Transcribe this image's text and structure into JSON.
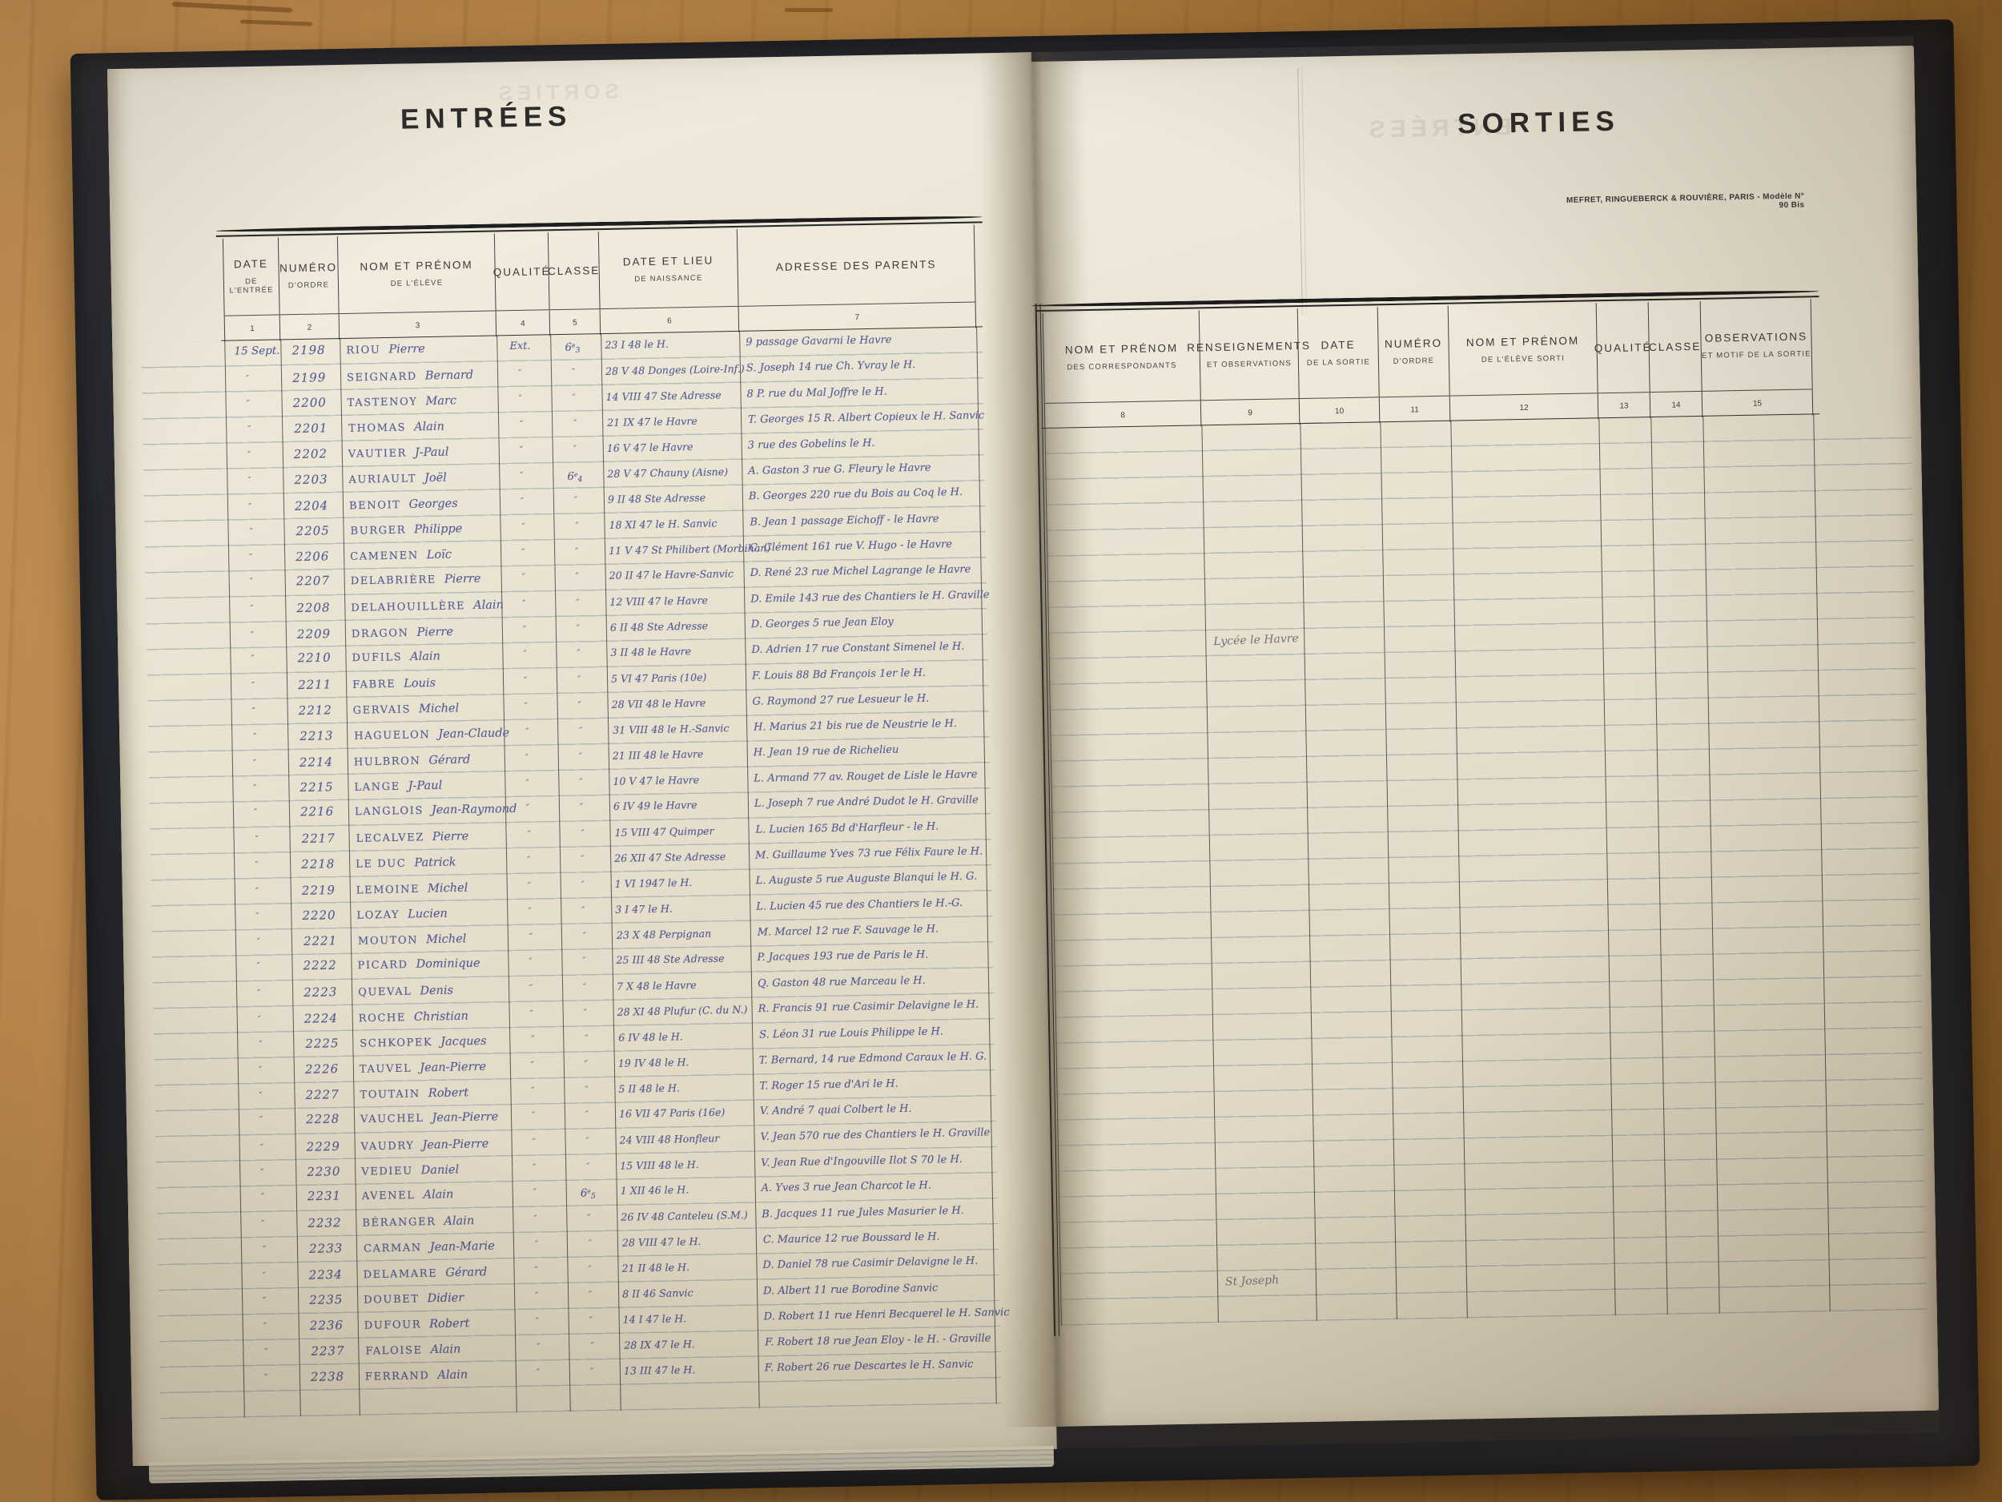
{
  "book": {
    "left_page": {
      "title": "ENTRÉES",
      "columns": [
        {
          "label": "DATE",
          "sublabel": "DE L'ENTRÉE",
          "num": "1"
        },
        {
          "label": "NUMÉRO",
          "sublabel": "D'ORDRE",
          "num": "2"
        },
        {
          "label": "NOM ET PRÉNOM",
          "sublabel": "DE L'ÉLÈVE",
          "num": "3"
        },
        {
          "label": "QUALITÉ",
          "sublabel": "",
          "num": "4"
        },
        {
          "label": "CLASSE",
          "sublabel": "",
          "num": "5"
        },
        {
          "label": "DATE ET LIEU",
          "sublabel": "DE NAISSANCE",
          "num": "6"
        },
        {
          "label": "ADRESSE DES PARENTS",
          "sublabel": "",
          "num": "7"
        }
      ],
      "rows": [
        {
          "date": "15 Sept.",
          "num": "2198",
          "last": "RIOU",
          "first": "Pierre",
          "qualite": "Ext.",
          "classe": "6e3",
          "birth": "23 I 48 le H.",
          "address": "9 passage Gavarni le Havre"
        },
        {
          "date": "″",
          "num": "2199",
          "last": "SEIGNARD",
          "first": "Bernard",
          "qualite": "″",
          "classe": "″",
          "birth": "28 V 48 Donges (Loire-Inf.)",
          "address": "S. Joseph 14 rue Ch. Yvray le H."
        },
        {
          "date": "″",
          "num": "2200",
          "last": "TASTENOY",
          "first": "Marc",
          "qualite": "″",
          "classe": "″",
          "birth": "14 VIII 47 Ste Adresse",
          "address": "8 P. rue du Mal Joffre le H."
        },
        {
          "date": "″",
          "num": "2201",
          "last": "THOMAS",
          "first": "Alain",
          "qualite": "″",
          "classe": "″",
          "birth": "21 IX 47 le Havre",
          "address": "T. Georges 15 R. Albert Copieux le H. Sanvic"
        },
        {
          "date": "″",
          "num": "2202",
          "last": "VAUTIER",
          "first": "J-Paul",
          "qualite": "″",
          "classe": "″",
          "birth": "16 V 47 le Havre",
          "address": "3 rue des Gobelins le H."
        },
        {
          "date": "″",
          "num": "2203",
          "last": "AURIAULT",
          "first": "Joël",
          "qualite": "″",
          "classe": "6e4",
          "birth": "28 V 47 Chauny (Aisne)",
          "address": "A. Gaston 3 rue G. Fleury le Havre"
        },
        {
          "date": "″",
          "num": "2204",
          "last": "BENOIT",
          "first": "Georges",
          "qualite": "″",
          "classe": "″",
          "birth": "9 II 48 Ste Adresse",
          "address": "B. Georges 220 rue du Bois au Coq le H."
        },
        {
          "date": "″",
          "num": "2205",
          "last": "BURGER",
          "first": "Philippe",
          "qualite": "″",
          "classe": "″",
          "birth": "18 XI 47 le H. Sanvic",
          "address": "B. Jean 1 passage Eichoff - le Havre"
        },
        {
          "date": "″",
          "num": "2206",
          "last": "CAMENEN",
          "first": "Loïc",
          "qualite": "″",
          "classe": "″",
          "birth": "11 V 47 St Philibert (Morbihan)",
          "address": "C. Clément 161 rue V. Hugo - le Havre"
        },
        {
          "date": "″",
          "num": "2207",
          "last": "DELABRIÈRE",
          "first": "Pierre",
          "qualite": "″",
          "classe": "″",
          "birth": "20 II 47 le Havre-Sanvic",
          "address": "D. René 23 rue Michel Lagrange le Havre"
        },
        {
          "date": "″",
          "num": "2208",
          "last": "DELAHOUILLÈRE",
          "first": "Alain",
          "qualite": "″",
          "classe": "″",
          "birth": "12 VIII 47 le Havre",
          "address": "D. Emile 143 rue des Chantiers le H. Graville"
        },
        {
          "date": "″",
          "num": "2209",
          "last": "DRAGON",
          "first": "Pierre",
          "qualite": "″",
          "classe": "″",
          "birth": "6 II 48 Ste Adresse",
          "address": "D. Georges 5 rue Jean Eloy"
        },
        {
          "date": "″",
          "num": "2210",
          "last": "DUFILS",
          "first": "Alain",
          "qualite": "″",
          "classe": "″",
          "birth": "3 II 48 le Havre",
          "address": "D. Adrien 17 rue Constant Simenel le H."
        },
        {
          "date": "″",
          "num": "2211",
          "last": "FABRE",
          "first": "Louis",
          "qualite": "″",
          "classe": "″",
          "birth": "5 VI 47 Paris (10e)",
          "address": "F. Louis 88 Bd François 1er le H."
        },
        {
          "date": "″",
          "num": "2212",
          "last": "GERVAIS",
          "first": "Michel",
          "qualite": "″",
          "classe": "″",
          "birth": "28 VII 48 le Havre",
          "address": "G. Raymond 27 rue Lesueur le H."
        },
        {
          "date": "″",
          "num": "2213",
          "last": "HAGUELON",
          "first": "Jean-Claude",
          "qualite": "″",
          "classe": "″",
          "birth": "31 VIII 48 le H.-Sanvic",
          "address": "H. Marius 21 bis rue de Neustrie le H."
        },
        {
          "date": "″",
          "num": "2214",
          "last": "HULBRON",
          "first": "Gérard",
          "qualite": "″",
          "classe": "″",
          "birth": "21 III 48 le Havre",
          "address": "H. Jean 19 rue de Richelieu"
        },
        {
          "date": "″",
          "num": "2215",
          "last": "LANGE",
          "first": "J-Paul",
          "qualite": "″",
          "classe": "″",
          "birth": "10 V 47 le Havre",
          "address": "L. Armand 77 av. Rouget de Lisle le Havre"
        },
        {
          "date": "″",
          "num": "2216",
          "last": "LANGLOIS",
          "first": "Jean-Raymond",
          "qualite": "″",
          "classe": "″",
          "birth": "6 IV 49 le Havre",
          "address": "L. Joseph 7 rue André Dudot le H. Graville"
        },
        {
          "date": "″",
          "num": "2217",
          "last": "LECALVEZ",
          "first": "Pierre",
          "qualite": "″",
          "classe": "″",
          "birth": "15 VIII 47 Quimper",
          "address": "L. Lucien 165 Bd d'Harfleur - le H."
        },
        {
          "date": "″",
          "num": "2218",
          "last": "LE DUC",
          "first": "Patrick",
          "qualite": "″",
          "classe": "″",
          "birth": "26 XII 47 Ste Adresse",
          "address": "M. Guillaume Yves 73 rue Félix Faure le H."
        },
        {
          "date": "″",
          "num": "2219",
          "last": "LEMOINE",
          "first": "Michel",
          "qualite": "″",
          "classe": "″",
          "birth": "1 VI 1947 le H.",
          "address": "L. Auguste 5 rue Auguste Blanqui le H. G."
        },
        {
          "date": "″",
          "num": "2220",
          "last": "LOZAY",
          "first": "Lucien",
          "qualite": "″",
          "classe": "″",
          "birth": "3 I 47 le H.",
          "address": "L. Lucien 45 rue des Chantiers le H.-G."
        },
        {
          "date": "″",
          "num": "2221",
          "last": "MOUTON",
          "first": "Michel",
          "qualite": "″",
          "classe": "″",
          "birth": "23 X 48 Perpignan",
          "address": "M. Marcel 12 rue F. Sauvage le H."
        },
        {
          "date": "″",
          "num": "2222",
          "last": "PICARD",
          "first": "Dominique",
          "qualite": "″",
          "classe": "″",
          "birth": "25 III 48 Ste Adresse",
          "address": "P. Jacques 193 rue de Paris le H."
        },
        {
          "date": "″",
          "num": "2223",
          "last": "QUEVAL",
          "first": "Denis",
          "qualite": "″",
          "classe": "″",
          "birth": "7 X 48 le Havre",
          "address": "Q. Gaston 48 rue Marceau le H."
        },
        {
          "date": "″",
          "num": "2224",
          "last": "ROCHE",
          "first": "Christian",
          "qualite": "″",
          "classe": "″",
          "birth": "28 XI 48 Plufur (C. du N.)",
          "address": "R. Francis 91 rue Casimir Delavigne le H."
        },
        {
          "date": "″",
          "num": "2225",
          "last": "SCHKOPEK",
          "first": "Jacques",
          "qualite": "″",
          "classe": "″",
          "birth": "6 IV 48 le H.",
          "address": "S. Léon 31 rue Louis Philippe le H."
        },
        {
          "date": "″",
          "num": "2226",
          "last": "TAUVEL",
          "first": "Jean-Pierre",
          "qualite": "″",
          "classe": "″",
          "birth": "19 IV 48 le H.",
          "address": "T. Bernard, 14 rue Edmond Caraux le H. G."
        },
        {
          "date": "″",
          "num": "2227",
          "last": "TOUTAIN",
          "first": "Robert",
          "qualite": "″",
          "classe": "″",
          "birth": "5 II 48 le H.",
          "address": "T. Roger 15 rue d'Ari le H."
        },
        {
          "date": "″",
          "num": "2228",
          "last": "VAUCHEL",
          "first": "Jean-Pierre",
          "qualite": "″",
          "classe": "″",
          "birth": "16 VII 47 Paris (16e)",
          "address": "V. André 7 quai Colbert le H."
        },
        {
          "date": "″",
          "num": "2229",
          "last": "VAUDRY",
          "first": "Jean-Pierre",
          "qualite": "″",
          "classe": "″",
          "birth": "24 VIII 48 Honfleur",
          "address": "V. Jean 570 rue des Chantiers le H. Graville"
        },
        {
          "date": "″",
          "num": "2230",
          "last": "VEDIEU",
          "first": "Daniel",
          "qualite": "″",
          "classe": "″",
          "birth": "15 VIII 48 le H.",
          "address": "V. Jean Rue d'Ingouville Ilot S 70 le H."
        },
        {
          "date": "″",
          "num": "2231",
          "last": "AVENEL",
          "first": "Alain",
          "qualite": "″",
          "classe": "6e5",
          "birth": "1 XII 46 le H.",
          "address": "A. Yves 3 rue Jean Charcot le H."
        },
        {
          "date": "″",
          "num": "2232",
          "last": "BÉRANGER",
          "first": "Alain",
          "qualite": "″",
          "classe": "″",
          "birth": "26 IV 48 Canteleu (S.M.)",
          "address": "B. Jacques 11 rue Jules Masurier le H."
        },
        {
          "date": "″",
          "num": "2233",
          "last": "CARMAN",
          "first": "Jean-Marie",
          "qualite": "″",
          "classe": "″",
          "birth": "28 VIII 47 le H.",
          "address": "C. Maurice 12 rue Boussard le H."
        },
        {
          "date": "″",
          "num": "2234",
          "last": "DELAMARE",
          "first": "Gérard",
          "qualite": "″",
          "classe": "″",
          "birth": "21 II 48 le H.",
          "address": "D. Daniel 78 rue Casimir Delavigne le H."
        },
        {
          "date": "″",
          "num": "2235",
          "last": "DOUBET",
          "first": "Didier",
          "qualite": "″",
          "classe": "″",
          "birth": "8 II 46 Sanvic",
          "address": "D. Albert 11 rue Borodine Sanvic"
        },
        {
          "date": "″",
          "num": "2236",
          "last": "DUFOUR",
          "first": "Robert",
          "qualite": "″",
          "classe": "″",
          "birth": "14 I 47 le H.",
          "address": "D. Robert 11 rue Henri Becquerel le H. Sanvic"
        },
        {
          "date": "″",
          "num": "2237",
          "last": "FALOISE",
          "first": "Alain",
          "qualite": "″",
          "classe": "″",
          "birth": "28 IX 47 le H.",
          "address": "F. Robert 18 rue Jean Eloy - le H. - Graville"
        },
        {
          "date": "″",
          "num": "2238",
          "last": "FERRAND",
          "first": "Alain",
          "qualite": "″",
          "classe": "″",
          "birth": "13 III 47 le H.",
          "address": "F. Robert 26 rue Descartes le H. Sanvic"
        }
      ]
    },
    "right_page": {
      "title": "SORTIES",
      "imprint_line": "MEFRET, RINGUEBERCK & ROUVIÈRE, PARIS - Modèle N° 90 Bis",
      "columns": [
        {
          "label": "NOM ET PRÉNOM",
          "sublabel": "DES CORRESPONDANTS",
          "num": "8"
        },
        {
          "label": "RENSEIGNEMENTS",
          "sublabel": "ET OBSERVATIONS",
          "num": "9"
        },
        {
          "label": "DATE",
          "sublabel": "DE LA SORTIE",
          "num": "10"
        },
        {
          "label": "NUMÉRO",
          "sublabel": "D'ORDRE",
          "num": "11"
        },
        {
          "label": "NOM ET PRÉNOM",
          "sublabel": "DE L'ÉLÈVE SORTI",
          "num": "12"
        },
        {
          "label": "QUALITÉ",
          "sublabel": "",
          "num": "13"
        },
        {
          "label": "CLASSE",
          "sublabel": "",
          "num": "14"
        },
        {
          "label": "OBSERVATIONS",
          "sublabel": "ET MOTIF DE LA SORTIE",
          "num": "15"
        }
      ],
      "notes": [
        {
          "text": "Lycée le Havre",
          "row": 12
        },
        {
          "text": "St Joseph",
          "row": 37
        }
      ]
    }
  }
}
